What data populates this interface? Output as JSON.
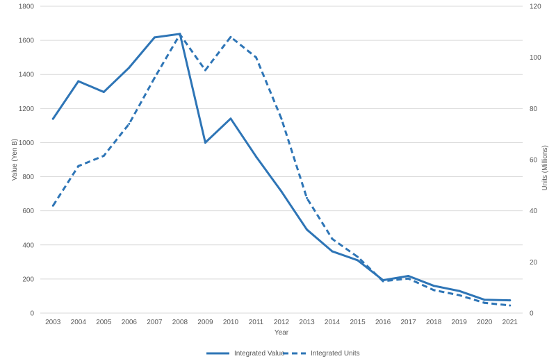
{
  "chart_data": {
    "type": "line",
    "x": [
      "2003",
      "2004",
      "2005",
      "2006",
      "2007",
      "2008",
      "2009",
      "2010",
      "2011",
      "2012",
      "2013",
      "2014",
      "2015",
      "2016",
      "2017",
      "2018",
      "2019",
      "2020",
      "2021"
    ],
    "series": [
      {
        "name": "Integrated Value",
        "axis": "left",
        "style": "solid",
        "color": "#2E75B6",
        "values": [
          1140,
          1360,
          1297,
          1440,
          1617,
          1638,
          1000,
          1141,
          918,
          713,
          490,
          362,
          310,
          193,
          218,
          160,
          130,
          78,
          75
        ]
      },
      {
        "name": "Integrated Units",
        "axis": "right",
        "style": "dashed",
        "color": "#2E75B6",
        "values": [
          42,
          57.5,
          61.5,
          74,
          92,
          109,
          95,
          108,
          100,
          76,
          45,
          29,
          22,
          12.5,
          13.5,
          9,
          7,
          4,
          3
        ]
      }
    ],
    "xlabel": "Year",
    "ylabel_left": "Value (Yen B)",
    "ylabel_right": "Units (Millions)",
    "ylim_left": [
      0,
      1800
    ],
    "ylim_right": [
      0,
      120
    ],
    "yticks_left": [
      "0",
      "200",
      "400",
      "600",
      "800",
      "1000",
      "1200",
      "1400",
      "1600",
      "1800"
    ],
    "yticks_right": [
      "0",
      "20",
      "40",
      "60",
      "80",
      "100",
      "120"
    ],
    "grid": true,
    "legend_position": "bottom"
  }
}
